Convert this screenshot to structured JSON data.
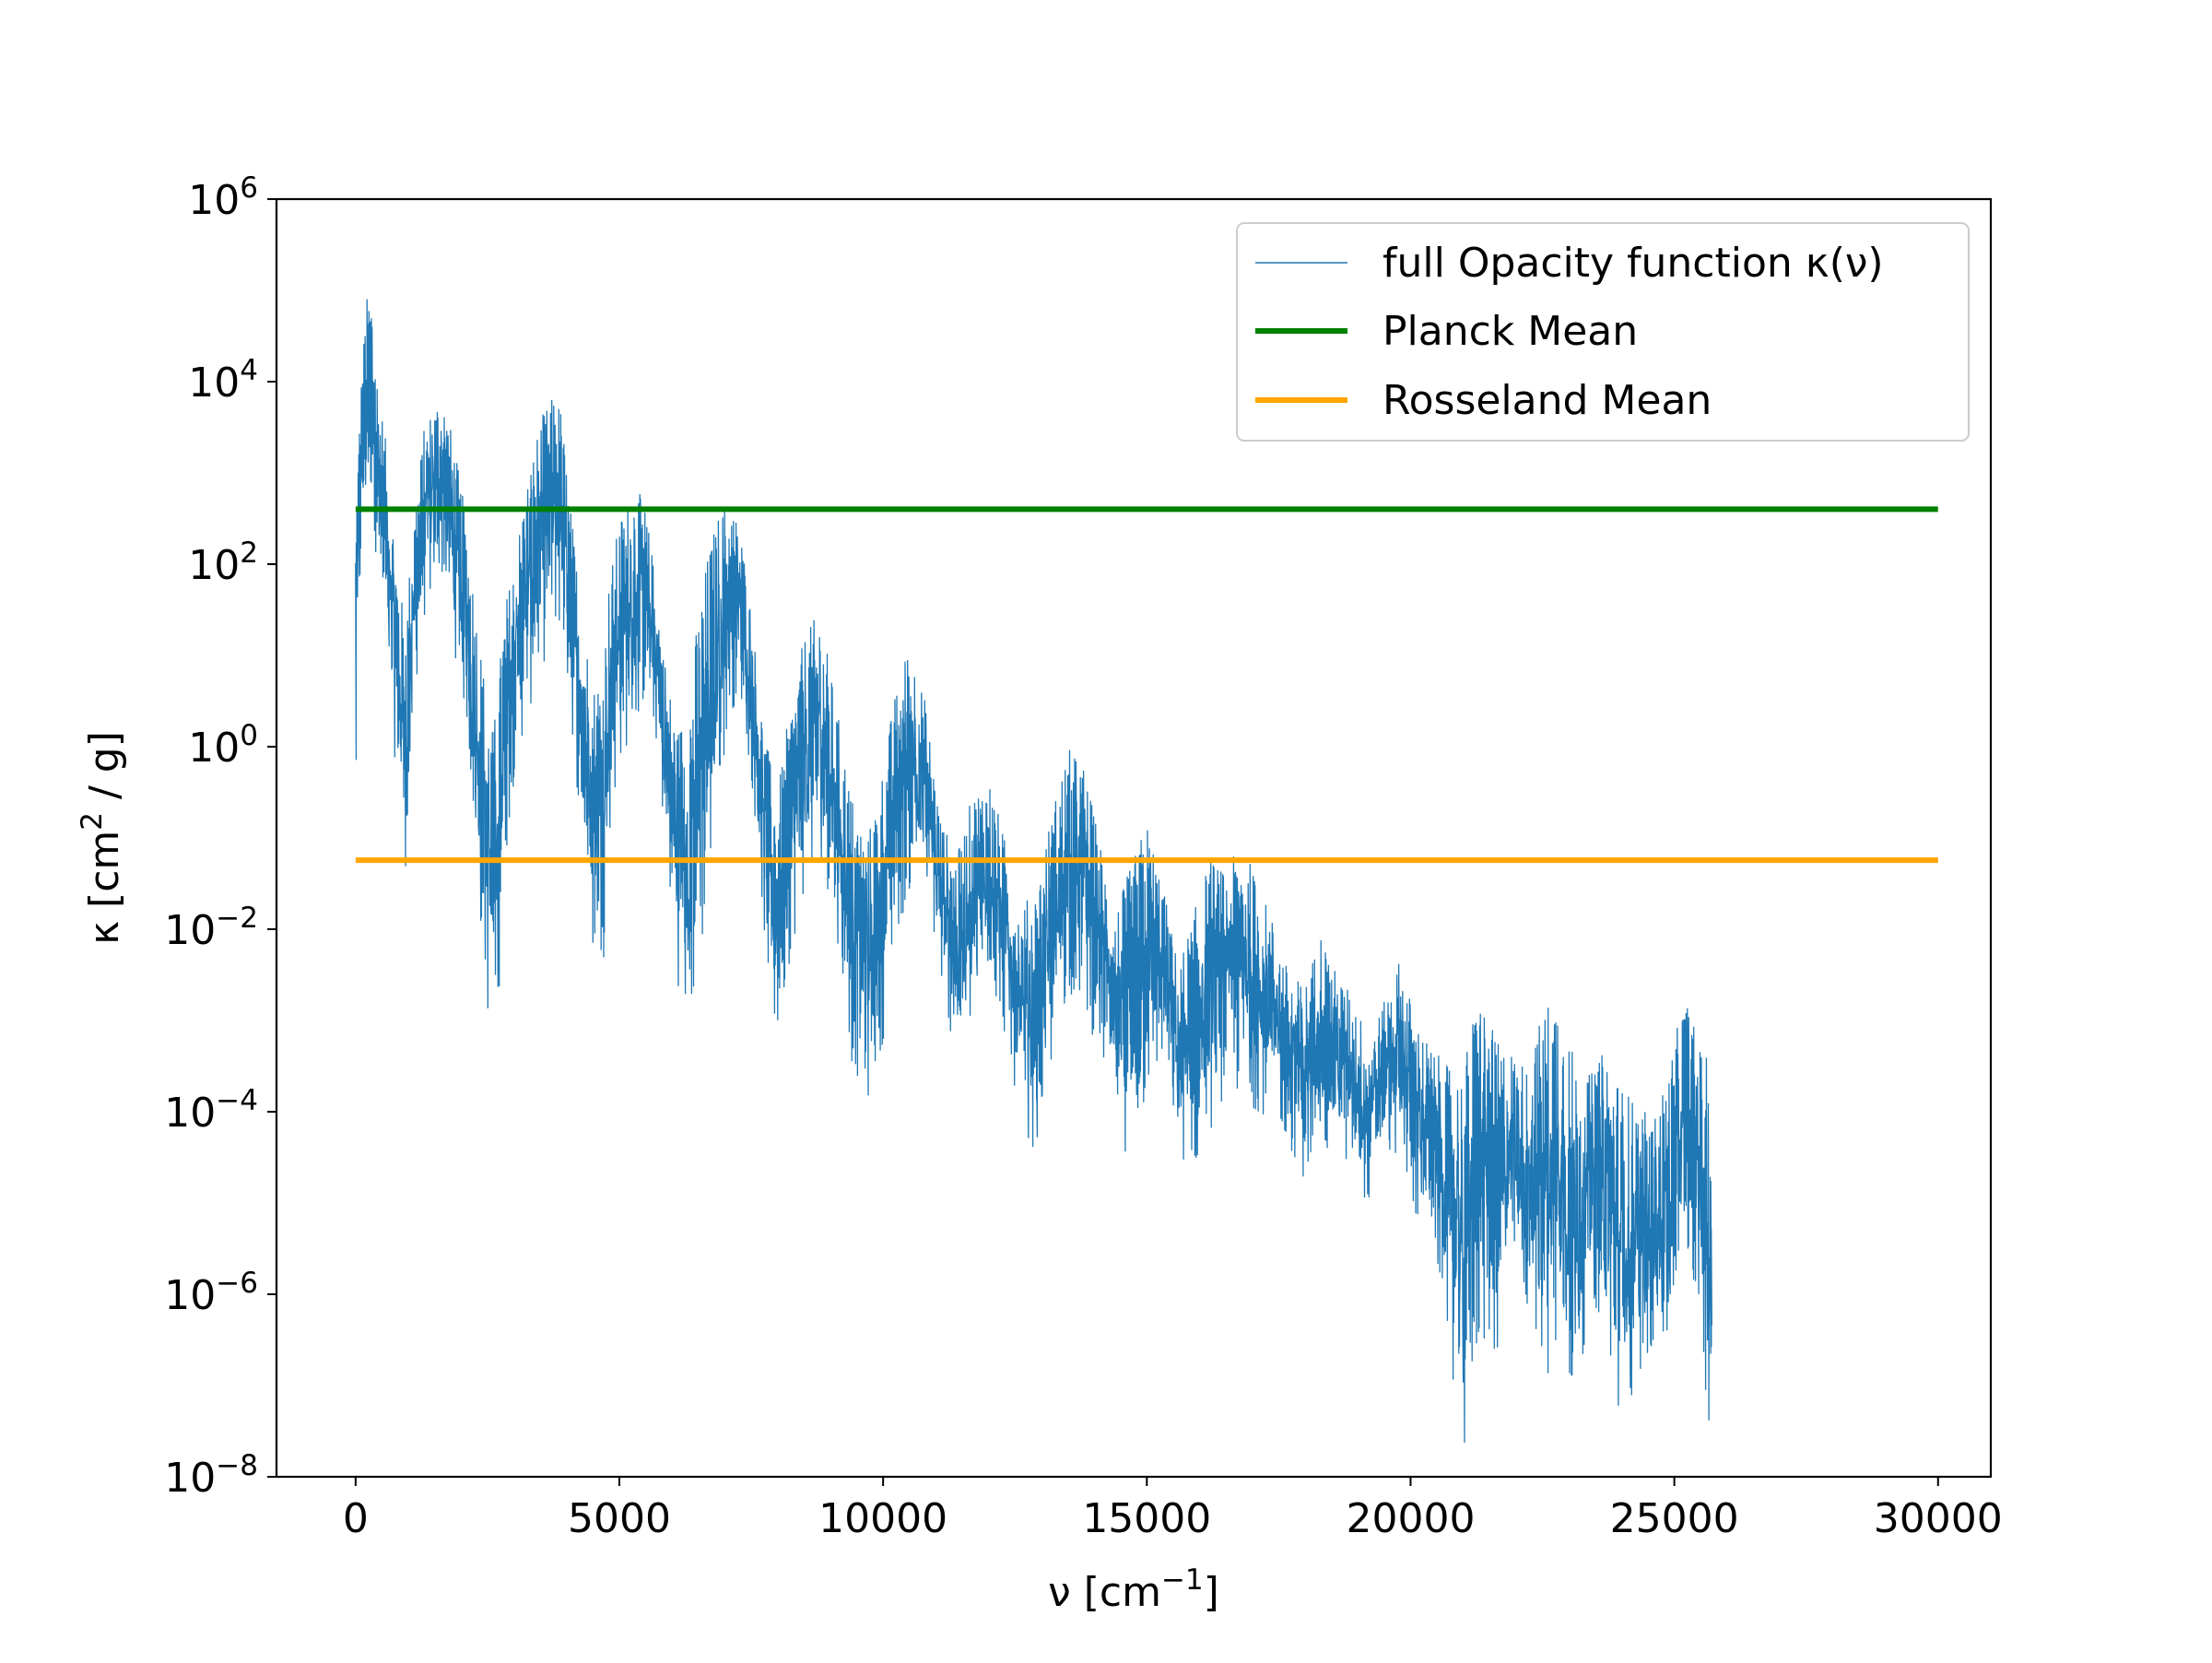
{
  "chart_data": {
    "type": "line",
    "x_axis": {
      "label_main": "ν [cm",
      "label_sup": "−1",
      "label_end": "]",
      "range": [
        -1500,
        31000
      ],
      "ticks": [
        0,
        5000,
        10000,
        15000,
        20000,
        25000,
        30000
      ],
      "tick_labels": [
        "0",
        "5000",
        "10000",
        "15000",
        "20000",
        "25000",
        "30000"
      ]
    },
    "y_axis": {
      "label_main": "κ [cm",
      "label_sup": "2",
      "label_end": " / g]",
      "scale": "log",
      "range_exponent": [
        -8,
        6
      ],
      "ticks_exponent": [
        -8,
        -6,
        -4,
        -2,
        0,
        2,
        4,
        6
      ],
      "tick_base": "10",
      "tick_exponent_labels": [
        "−8",
        "−6",
        "−4",
        "−2",
        "0",
        "2",
        "4",
        "6"
      ]
    },
    "grid": false,
    "legend": {
      "placement": "upper right",
      "entries": [
        {
          "label": "full Opacity function κ(ν)",
          "color": "#1f77b4",
          "style": "thin"
        },
        {
          "label": "Planck Mean",
          "color": "#008000",
          "style": "thick"
        },
        {
          "label": "Rosseland Mean",
          "color": "#ffa500",
          "style": "thick"
        }
      ]
    },
    "series": [
      {
        "name": "full Opacity function κ(ν)",
        "color": "#1f77b4",
        "envelope_nu": [
          0,
          30,
          100,
          200,
          300,
          400,
          600,
          800,
          900,
          1000,
          1100,
          1300,
          1500,
          1600,
          1700,
          1900,
          2100,
          2300,
          2500,
          2600,
          2700,
          2800,
          3000,
          3200,
          3500,
          3800,
          3900,
          4100,
          4300,
          4500,
          4700,
          4800,
          5000,
          5300,
          5500,
          5700,
          5900,
          6100,
          6300,
          6500,
          6700,
          6900,
          7100,
          7300,
          7500,
          7700,
          7900,
          8000,
          8200,
          8500,
          8800,
          9100,
          9400,
          9700,
          10000,
          10200,
          10500,
          10800,
          11100,
          11400,
          11700,
          12000,
          12300,
          12600,
          12900,
          13200,
          13500,
          13800,
          14100,
          14400,
          14700,
          15000,
          15300,
          15600,
          15900,
          16200,
          16500,
          16800,
          17100,
          17400,
          17700,
          18000,
          18300,
          18600,
          18900,
          19200,
          19500,
          19800,
          20100,
          20400,
          20700,
          21000,
          21300,
          21600,
          21900,
          22200,
          22500,
          22800,
          23100,
          23400,
          23700,
          24000,
          24300,
          24600,
          24900,
          25200,
          25500,
          25700
        ],
        "envelope_log_max": [
          2.8,
          3.2,
          4.0,
          4.9,
          5.1,
          4.2,
          3.2,
          2.0,
          1.5,
          1.8,
          2.6,
          3.5,
          3.8,
          3.9,
          3.8,
          3.2,
          2.5,
          1.5,
          0.5,
          0.2,
          0.6,
          1.5,
          2.0,
          2.8,
          3.6,
          3.9,
          3.7,
          2.5,
          1.5,
          0.7,
          1.0,
          1.8,
          2.5,
          2.9,
          2.6,
          1.8,
          0.8,
          0.2,
          0.5,
          1.5,
          2.2,
          2.6,
          2.7,
          2.4,
          1.5,
          0.4,
          -0.3,
          -0.5,
          0.3,
          1.2,
          1.5,
          0.5,
          -0.5,
          -1.0,
          -0.2,
          0.5,
          1.2,
          0.5,
          -0.8,
          -1.2,
          -0.5,
          -0.3,
          -1.0,
          -1.8,
          -1.5,
          -0.7,
          0.0,
          -0.2,
          -1.0,
          -1.8,
          -1.3,
          -0.8,
          -1.5,
          -2.4,
          -1.8,
          -1.2,
          -1.4,
          -1.0,
          -1.5,
          -1.9,
          -2.5,
          -2.6,
          -2.0,
          -2.5,
          -2.7,
          -3.2,
          -2.8,
          -2.3,
          -3.0,
          -3.3,
          -3.5,
          -3.5,
          -2.6,
          -3.2,
          -3.3,
          -3.5,
          -2.9,
          -2.5,
          -3.4,
          -3.6,
          -3.3,
          -3.7,
          -3.9,
          -4.1,
          -3.5,
          -2.7,
          -3.3,
          -3.5
        ],
        "envelope_log_min": [
          -1.3,
          0.5,
          2.0,
          2.5,
          2.7,
          1.9,
          0.6,
          -0.5,
          -1.4,
          -1.2,
          0.5,
          1.4,
          1.7,
          1.9,
          1.7,
          0.9,
          0.2,
          -1.6,
          -3.0,
          -3.3,
          -2.8,
          -1.5,
          -0.3,
          0.2,
          0.8,
          1.3,
          1.2,
          0.1,
          -1.2,
          -2.4,
          -2.3,
          -1.0,
          -0.2,
          0.2,
          0.5,
          0.0,
          -1.4,
          -2.6,
          -3.2,
          -2.6,
          -1.5,
          -0.4,
          0.4,
          0.5,
          -0.4,
          -1.8,
          -3.2,
          -3.3,
          -2.4,
          -1.6,
          -1.2,
          -2.0,
          -3.5,
          -3.9,
          -3.2,
          -2.2,
          -1.6,
          -1.5,
          -2.7,
          -3.5,
          -3.1,
          -2.5,
          -3.2,
          -4.1,
          -4.5,
          -3.5,
          -2.7,
          -2.9,
          -3.4,
          -4.2,
          -4.6,
          -3.9,
          -3.5,
          -4.5,
          -4.7,
          -4.2,
          -3.8,
          -3.9,
          -4.0,
          -4.1,
          -4.4,
          -4.8,
          -4.5,
          -4.3,
          -4.8,
          -5.0,
          -4.4,
          -4.6,
          -5.2,
          -5.4,
          -6.5,
          -7.9,
          -6.5,
          -6.8,
          -5.8,
          -6.2,
          -6.8,
          -7.0,
          -7.4,
          -6.0,
          -6.6,
          -7.7,
          -6.9,
          -6.6,
          -6.8,
          -5.5,
          -6.4,
          -8.0
        ]
      },
      {
        "name": "Planck Mean",
        "color": "#008000",
        "x": [
          0,
          30000
        ],
        "y": [
          400,
          400
        ]
      },
      {
        "name": "Rosseland Mean",
        "color": "#ffa500",
        "x": [
          0,
          30000
        ],
        "y": [
          0.057,
          0.057
        ]
      }
    ]
  }
}
